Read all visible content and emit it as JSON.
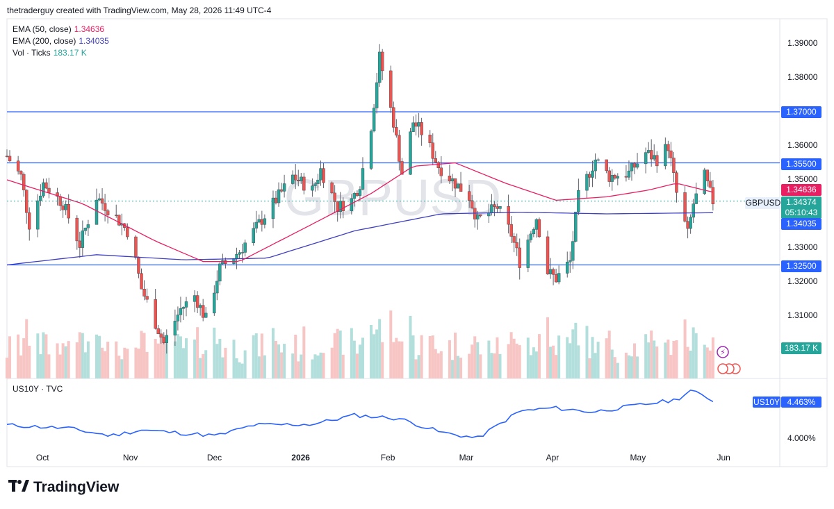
{
  "header": {
    "attribution": "thetraderguy created with TradingView.com, May 28, 2026 11:49 UTC-4"
  },
  "legend": [
    {
      "name": "EMA (50, close)",
      "value": "1.34636",
      "color": "#e91e63"
    },
    {
      "name": "EMA (200, close)",
      "value": "1.34035",
      "color": "#3f3fbf"
    },
    {
      "name": "Vol · Ticks",
      "value": "183.17 K",
      "color": "#26a69a"
    }
  ],
  "watermark": "GBPUSD",
  "symbol_label": "GBPUSD",
  "countdown": "05:10:43",
  "colors": {
    "up": "#26a69a",
    "down": "#ef5350",
    "vol_up": "#b2dfdb",
    "vol_down": "#f7c5c4",
    "ema50": "#e91e63",
    "ema200": "#3f3fbf",
    "hline": "#2962ff",
    "us10y": "#2962ff"
  },
  "lower_pane": {
    "label": "US10Y · TVC",
    "symbol": "US10Y",
    "value": "4.463%",
    "tick": "4.000%"
  },
  "price_badges": [
    {
      "text": "1.37000",
      "price": 1.37,
      "color": "#2962ff"
    },
    {
      "text": "1.35500",
      "price": 1.355,
      "color": "#2962ff"
    },
    {
      "text": "1.34636",
      "price": 1.34636,
      "color": "#e91e63"
    },
    {
      "text": "1.34374",
      "price": 1.34374,
      "color": "#26a69a"
    },
    {
      "text": "1.34035",
      "price": 1.34035,
      "color": "#2962ff"
    },
    {
      "text": "1.32500",
      "price": 1.325,
      "color": "#2962ff"
    },
    {
      "text": "183.17 K",
      "price": null,
      "color": "#26a69a"
    }
  ],
  "chart_data": {
    "type": "candlestick",
    "title": "",
    "y_ticks": [
      "1.39000",
      "1.38000",
      "1.36000",
      "1.35000",
      "1.33000",
      "1.32000",
      "1.31000"
    ],
    "ylim": [
      1.296,
      1.396
    ],
    "x_ticks": [
      "Oct",
      "Nov",
      "Dec",
      "2026",
      "Feb",
      "Mar",
      "Apr",
      "May",
      "Jun"
    ],
    "horizontal_lines": [
      1.37,
      1.355,
      1.325
    ],
    "keypoints": [
      {
        "d": "2025-09-18",
        "c": 1.357
      },
      {
        "d": "2025-09-23",
        "c": 1.351
      },
      {
        "d": "2025-09-26",
        "c": 1.337
      },
      {
        "d": "2025-10-01",
        "c": 1.349
      },
      {
        "d": "2025-10-08",
        "c": 1.343
      },
      {
        "d": "2025-10-14",
        "c": 1.331
      },
      {
        "d": "2025-10-20",
        "c": 1.345
      },
      {
        "d": "2025-10-27",
        "c": 1.339
      },
      {
        "d": "2025-11-01",
        "c": 1.334
      },
      {
        "d": "2025-11-05",
        "c": 1.318
      },
      {
        "d": "2025-11-08",
        "c": 1.312
      },
      {
        "d": "2025-11-13",
        "c": 1.302
      },
      {
        "d": "2025-11-19",
        "c": 1.312
      },
      {
        "d": "2025-11-24",
        "c": 1.316
      },
      {
        "d": "2025-11-28",
        "c": 1.309
      },
      {
        "d": "2025-12-03",
        "c": 1.324
      },
      {
        "d": "2025-12-10",
        "c": 1.329
      },
      {
        "d": "2025-12-16",
        "c": 1.336
      },
      {
        "d": "2025-12-22",
        "c": 1.343
      },
      {
        "d": "2025-12-29",
        "c": 1.351
      },
      {
        "d": "2026-01-05",
        "c": 1.347
      },
      {
        "d": "2026-01-08",
        "c": 1.353
      },
      {
        "d": "2026-01-14",
        "c": 1.342
      },
      {
        "d": "2026-01-19",
        "c": 1.344
      },
      {
        "d": "2026-01-22",
        "c": 1.349
      },
      {
        "d": "2026-01-26",
        "c": 1.366
      },
      {
        "d": "2026-01-29",
        "c": 1.386
      },
      {
        "d": "2026-02-03",
        "c": 1.367
      },
      {
        "d": "2026-02-06",
        "c": 1.352
      },
      {
        "d": "2026-02-10",
        "c": 1.367
      },
      {
        "d": "2026-02-14",
        "c": 1.363
      },
      {
        "d": "2026-02-19",
        "c": 1.354
      },
      {
        "d": "2026-02-25",
        "c": 1.349
      },
      {
        "d": "2026-03-02",
        "c": 1.345
      },
      {
        "d": "2026-03-05",
        "c": 1.338
      },
      {
        "d": "2026-03-12",
        "c": 1.342
      },
      {
        "d": "2026-03-17",
        "c": 1.334
      },
      {
        "d": "2026-03-20",
        "c": 1.326
      },
      {
        "d": "2026-03-26",
        "c": 1.339
      },
      {
        "d": "2026-03-30",
        "c": 1.323
      },
      {
        "d": "2026-04-02",
        "c": 1.321
      },
      {
        "d": "2026-04-07",
        "c": 1.326
      },
      {
        "d": "2026-04-10",
        "c": 1.345
      },
      {
        "d": "2026-04-16",
        "c": 1.356
      },
      {
        "d": "2026-04-21",
        "c": 1.351
      },
      {
        "d": "2026-04-28",
        "c": 1.352
      },
      {
        "d": "2026-05-04",
        "c": 1.358
      },
      {
        "d": "2026-05-08",
        "c": 1.356
      },
      {
        "d": "2026-05-12",
        "c": 1.36
      },
      {
        "d": "2026-05-15",
        "c": 1.346
      },
      {
        "d": "2026-05-19",
        "c": 1.334
      },
      {
        "d": "2026-05-21",
        "c": 1.343
      },
      {
        "d": "2026-05-25",
        "c": 1.351
      },
      {
        "d": "2026-05-27",
        "c": 1.346
      },
      {
        "d": "2026-05-28",
        "c": 1.34374
      }
    ],
    "ema50": [
      {
        "d": "2025-09-18",
        "v": 1.35
      },
      {
        "d": "2025-10-15",
        "v": 1.343
      },
      {
        "d": "2025-11-10",
        "v": 1.332
      },
      {
        "d": "2025-11-27",
        "v": 1.326
      },
      {
        "d": "2025-12-10",
        "v": 1.326
      },
      {
        "d": "2026-01-05",
        "v": 1.337
      },
      {
        "d": "2026-01-26",
        "v": 1.346
      },
      {
        "d": "2026-02-10",
        "v": 1.354
      },
      {
        "d": "2026-02-25",
        "v": 1.355
      },
      {
        "d": "2026-03-15",
        "v": 1.349
      },
      {
        "d": "2026-04-02",
        "v": 1.344
      },
      {
        "d": "2026-04-20",
        "v": 1.345
      },
      {
        "d": "2026-05-05",
        "v": 1.347
      },
      {
        "d": "2026-05-15",
        "v": 1.349
      },
      {
        "d": "2026-05-28",
        "v": 1.34636
      }
    ],
    "ema200": [
      {
        "d": "2025-09-18",
        "v": 1.325
      },
      {
        "d": "2025-10-20",
        "v": 1.328
      },
      {
        "d": "2025-11-20",
        "v": 1.3265
      },
      {
        "d": "2025-12-20",
        "v": 1.327
      },
      {
        "d": "2026-01-20",
        "v": 1.335
      },
      {
        "d": "2026-02-20",
        "v": 1.34
      },
      {
        "d": "2026-03-20",
        "v": 1.3405
      },
      {
        "d": "2026-04-20",
        "v": 1.34
      },
      {
        "d": "2026-05-28",
        "v": 1.34035
      }
    ],
    "volume": {
      "last": "183.17 K"
    },
    "us10y": [
      {
        "d": "2025-09-18",
        "v": 4.16
      },
      {
        "d": "2025-10-10",
        "v": 4.12
      },
      {
        "d": "2025-10-25",
        "v": 4.03
      },
      {
        "d": "2025-11-05",
        "v": 4.1
      },
      {
        "d": "2025-11-20",
        "v": 4.06
      },
      {
        "d": "2025-12-02",
        "v": 4.03
      },
      {
        "d": "2025-12-15",
        "v": 4.16
      },
      {
        "d": "2026-01-05",
        "v": 4.17
      },
      {
        "d": "2026-01-20",
        "v": 4.28
      },
      {
        "d": "2026-02-05",
        "v": 4.24
      },
      {
        "d": "2026-02-20",
        "v": 4.07
      },
      {
        "d": "2026-03-05",
        "v": 4.0
      },
      {
        "d": "2026-03-20",
        "v": 4.33
      },
      {
        "d": "2026-04-01",
        "v": 4.37
      },
      {
        "d": "2026-04-15",
        "v": 4.32
      },
      {
        "d": "2026-05-01",
        "v": 4.4
      },
      {
        "d": "2026-05-15",
        "v": 4.47
      },
      {
        "d": "2026-05-20",
        "v": 4.58
      },
      {
        "d": "2026-05-28",
        "v": 4.463
      }
    ]
  }
}
